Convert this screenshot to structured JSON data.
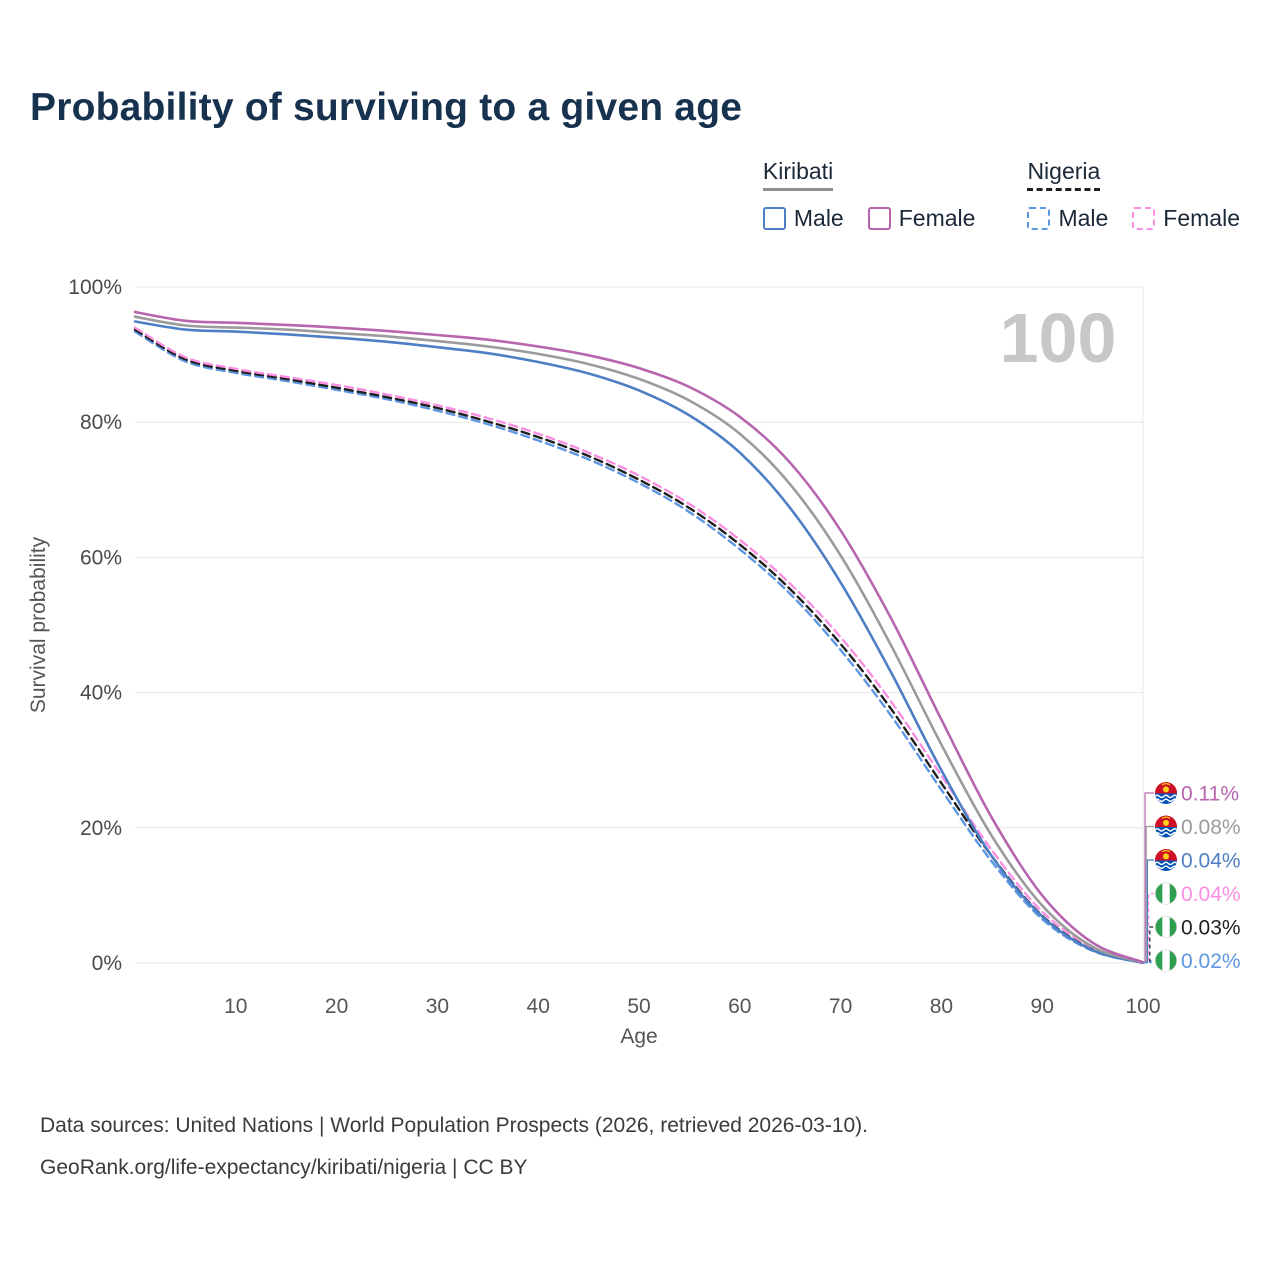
{
  "title": "Probability of surviving to a given age",
  "watermark": "100",
  "legend": {
    "groups": [
      {
        "label": "Kiribati",
        "items": [
          {
            "label": "Male"
          },
          {
            "label": "Female"
          }
        ]
      },
      {
        "label": "Nigeria",
        "items": [
          {
            "label": "Male"
          },
          {
            "label": "Female"
          }
        ]
      }
    ]
  },
  "chart_data": {
    "type": "line",
    "title": "Probability of surviving to a given age",
    "xlabel": "Age",
    "ylabel": "Survival probability",
    "xlim": [
      0,
      100
    ],
    "ylim": [
      0,
      100
    ],
    "grid": "horizontal",
    "x_ticks": [
      10,
      20,
      30,
      40,
      50,
      60,
      70,
      80,
      90,
      100
    ],
    "y_ticks": [
      {
        "value": 0,
        "label": "0%"
      },
      {
        "value": 20,
        "label": "20%"
      },
      {
        "value": 40,
        "label": "40%"
      },
      {
        "value": 60,
        "label": "60%"
      },
      {
        "value": 80,
        "label": "80%"
      },
      {
        "value": 100,
        "label": "100%"
      }
    ],
    "x": [
      0,
      5,
      10,
      15,
      20,
      25,
      30,
      35,
      40,
      45,
      50,
      55,
      60,
      65,
      70,
      75,
      80,
      85,
      90,
      95,
      100
    ],
    "series": [
      {
        "name": "Kiribati Female",
        "country": "kiribati",
        "color": "#b665ae",
        "dash": false,
        "end_label": "0.11%",
        "values": [
          96.3,
          95.0,
          94.7,
          94.4,
          94.0,
          93.5,
          92.9,
          92.2,
          91.2,
          89.9,
          88.0,
          85.2,
          80.8,
          74.0,
          64.0,
          51.0,
          36.0,
          21.5,
          10.0,
          3.0,
          0.11
        ]
      },
      {
        "name": "Kiribati Both sexes",
        "country": "kiribati",
        "color": "#9b9b9b",
        "dash": false,
        "end_label": "0.08%",
        "values": [
          95.6,
          94.3,
          94.0,
          93.7,
          93.2,
          92.7,
          92.0,
          91.2,
          90.1,
          88.6,
          86.4,
          83.2,
          78.3,
          70.8,
          60.3,
          47.0,
          32.3,
          18.8,
          8.5,
          2.4,
          0.08
        ]
      },
      {
        "name": "Kiribati Male",
        "country": "kiribati",
        "color": "#4e7fc4",
        "dash": false,
        "end_label": "0.04%",
        "values": [
          94.9,
          93.7,
          93.4,
          93.0,
          92.5,
          91.9,
          91.1,
          90.2,
          88.9,
          87.2,
          84.7,
          81.0,
          75.5,
          67.3,
          56.3,
          43.0,
          28.5,
          15.8,
          6.9,
          1.9,
          0.04
        ]
      },
      {
        "name": "Nigeria Female",
        "country": "nigeria",
        "color": "#fa8fe2",
        "dash": true,
        "end_label": "0.04%",
        "values": [
          94.0,
          89.6,
          87.9,
          86.7,
          85.5,
          84.1,
          82.5,
          80.6,
          78.3,
          75.5,
          72.1,
          67.9,
          62.6,
          56.1,
          48.2,
          38.7,
          27.7,
          16.7,
          7.6,
          2.3,
          0.04
        ]
      },
      {
        "name": "Nigeria Both sexes",
        "country": "nigeria",
        "color": "#1f1f1f",
        "dash": true,
        "end_label": "0.03%",
        "values": [
          93.7,
          89.3,
          87.6,
          86.4,
          85.1,
          83.7,
          82.1,
          80.1,
          77.8,
          75.0,
          71.5,
          67.3,
          61.9,
          55.3,
          47.2,
          37.6,
          26.6,
          15.8,
          7.0,
          2.0,
          0.03
        ]
      },
      {
        "name": "Nigeria Male",
        "country": "nigeria",
        "color": "#5d97e3",
        "dash": true,
        "end_label": "0.02%",
        "values": [
          93.4,
          89.0,
          87.3,
          86.1,
          84.8,
          83.4,
          81.7,
          79.7,
          77.3,
          74.5,
          71.0,
          66.7,
          61.2,
          54.6,
          46.3,
          36.6,
          25.6,
          15.0,
          6.5,
          1.8,
          0.02
        ]
      }
    ]
  },
  "footer": {
    "line1": "Data sources: United Nations | World Population Prospects (2026, retrieved 2026-03-10).",
    "line2": "GeoRank.org/life-expectancy/kiribati/nigeria | CC BY"
  }
}
